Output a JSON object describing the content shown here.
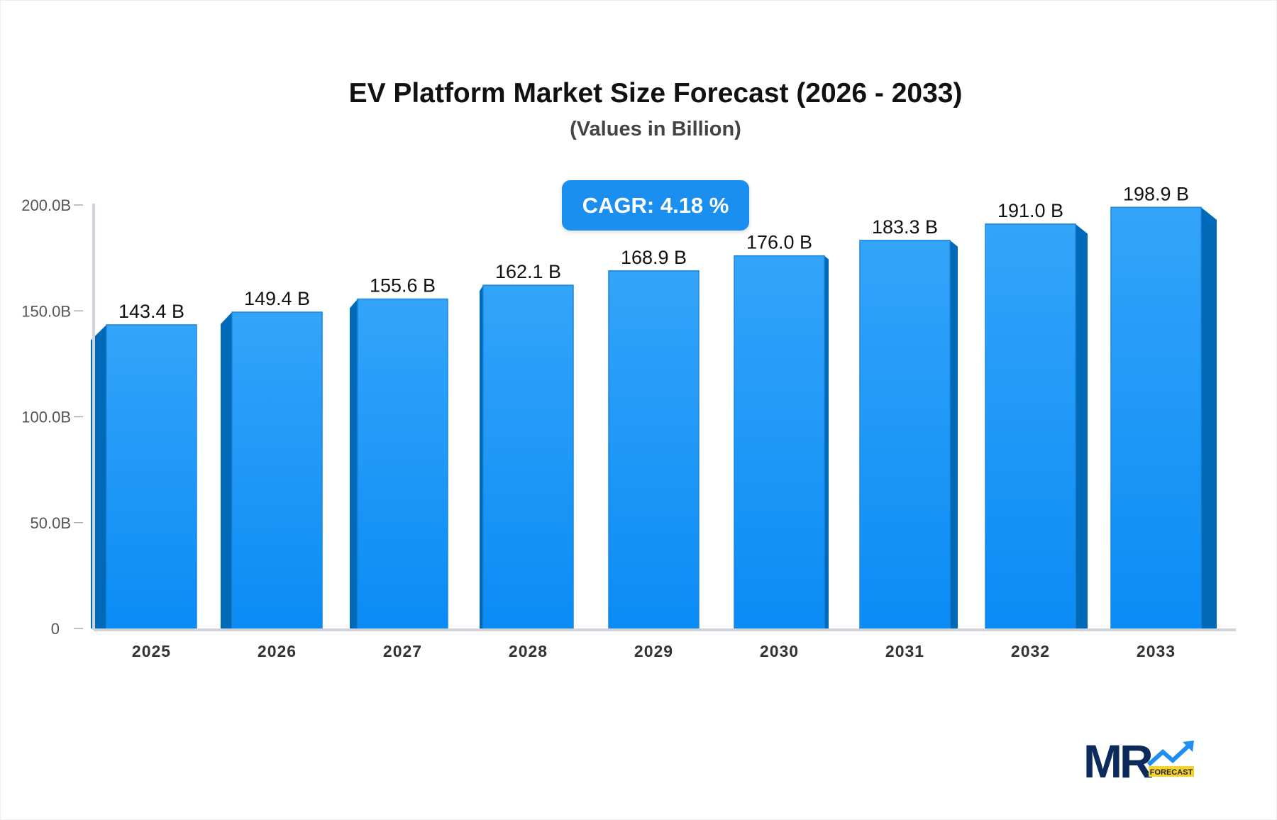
{
  "chart_data": {
    "type": "bar",
    "title": "EV Platform Market Size Forecast (2026 - 2033)",
    "subtitle": "(Values in Billion)",
    "annotation": "CAGR: 4.18 %",
    "categories": [
      "2025",
      "2026",
      "2027",
      "2028",
      "2029",
      "2030",
      "2031",
      "2032",
      "2033"
    ],
    "values": [
      143.4,
      149.4,
      155.6,
      162.1,
      168.9,
      176.0,
      183.3,
      191.0,
      198.9
    ],
    "data_labels": [
      "143.4 B",
      "149.4 B",
      "155.6 B",
      "162.1 B",
      "168.9 B",
      "176.0 B",
      "183.3 B",
      "191.0 B",
      "198.9 B"
    ],
    "y_ticks": [
      0,
      50,
      100,
      150,
      200
    ],
    "y_tick_labels": [
      "0",
      "50.0B",
      "100.0B",
      "150.0B",
      "200.0B"
    ],
    "ylim": [
      0,
      200
    ],
    "grid": false,
    "colors": {
      "bar_top": "#34a4f8",
      "bar_bottom": "#0a8cf6",
      "bar_side": "#0069b8",
      "axis": "#d0d3da",
      "badge": "#1a8ff0"
    }
  },
  "logo": {
    "text": "MR",
    "tag": "FORECAST"
  }
}
